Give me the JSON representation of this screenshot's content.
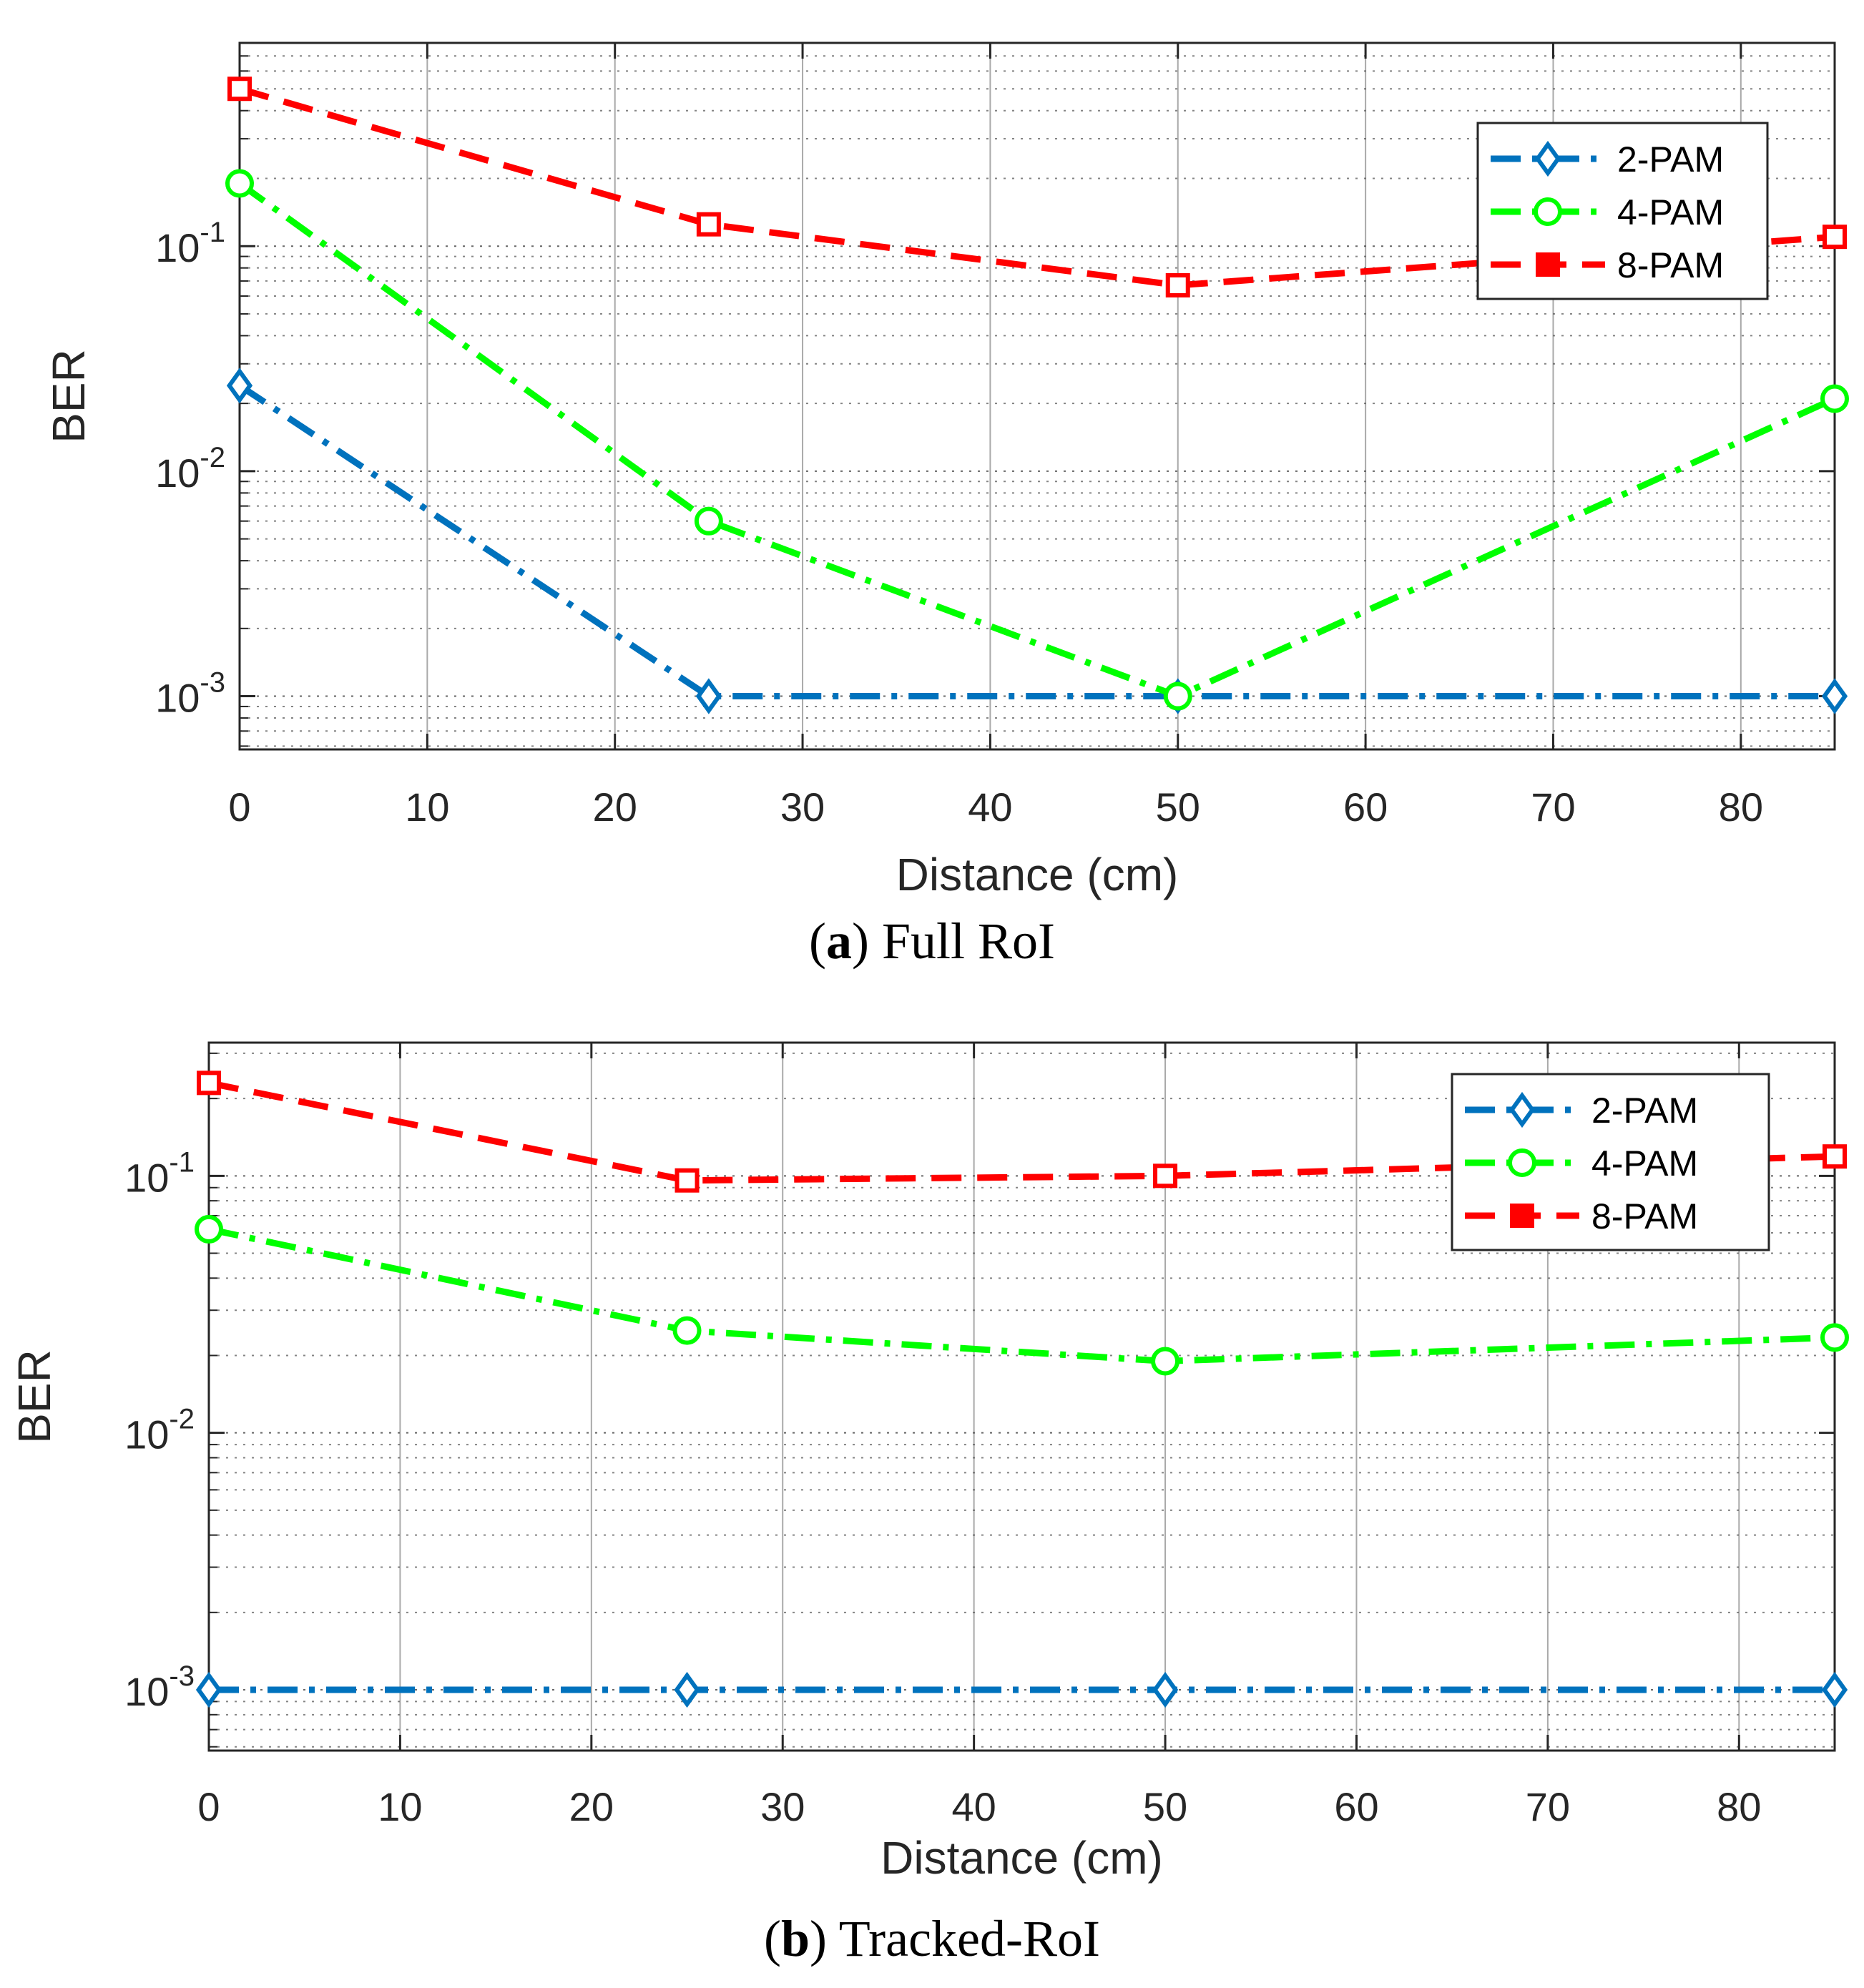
{
  "chart_data": [
    {
      "type": "line",
      "caption_letter": "a",
      "caption_text": "Full RoI",
      "xlabel": "Distance (cm)",
      "ylabel": "BER",
      "y_scale": "log",
      "xlim": [
        0,
        85
      ],
      "ylim": [
        0.00058,
        0.8
      ],
      "x_ticks": [
        0,
        10,
        20,
        30,
        40,
        50,
        60,
        70,
        80
      ],
      "y_ticks": [
        {
          "value": 0.1,
          "base": "10",
          "exp": "-1"
        },
        {
          "value": 0.01,
          "base": "10",
          "exp": "-2"
        },
        {
          "value": 0.001,
          "base": "10",
          "exp": "-3"
        }
      ],
      "grid": true,
      "legend_position": "top-right",
      "x": [
        0,
        25,
        50,
        85
      ],
      "series": [
        {
          "name": "2-PAM",
          "values": [
            0.024,
            0.001,
            0.001,
            0.001
          ],
          "color": "#0072bd",
          "marker": "diamond",
          "line": "dash-dot"
        },
        {
          "name": "4-PAM",
          "values": [
            0.19,
            0.006,
            0.001,
            0.021
          ],
          "color": "#00ff00",
          "marker": "circle",
          "line": "dash-dot"
        },
        {
          "name": "8-PAM",
          "values": [
            0.5,
            0.125,
            0.067,
            0.11
          ],
          "color": "#ff0000",
          "marker": "square",
          "line": "dashed"
        }
      ]
    },
    {
      "type": "line",
      "caption_letter": "b",
      "caption_text": "Tracked-RoI",
      "xlabel": "Distance (cm)",
      "ylabel": "BER",
      "y_scale": "log",
      "xlim": [
        0,
        85
      ],
      "ylim": [
        0.00058,
        0.33
      ],
      "x_ticks": [
        0,
        10,
        20,
        30,
        40,
        50,
        60,
        70,
        80
      ],
      "y_ticks": [
        {
          "value": 0.1,
          "base": "10",
          "exp": "-1"
        },
        {
          "value": 0.01,
          "base": "10",
          "exp": "-2"
        },
        {
          "value": 0.001,
          "base": "10",
          "exp": "-3"
        }
      ],
      "grid": true,
      "legend_position": "top-right",
      "x": [
        0,
        25,
        50,
        85
      ],
      "series": [
        {
          "name": "2-PAM",
          "values": [
            0.001,
            0.001,
            0.001,
            0.001
          ],
          "color": "#0072bd",
          "marker": "diamond",
          "line": "dash-dot"
        },
        {
          "name": "4-PAM",
          "values": [
            0.062,
            0.025,
            0.019,
            0.0235
          ],
          "color": "#00ff00",
          "marker": "circle",
          "line": "dash-dot"
        },
        {
          "name": "8-PAM",
          "values": [
            0.23,
            0.096,
            0.1,
            0.119
          ],
          "color": "#ff0000",
          "marker": "square",
          "line": "dashed"
        }
      ]
    }
  ]
}
